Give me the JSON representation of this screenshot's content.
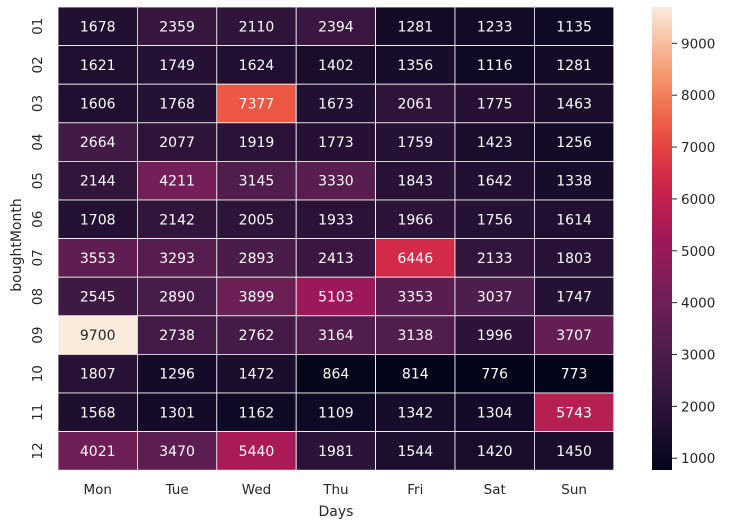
{
  "chart_data": {
    "type": "heatmap",
    "xlabel": "Days",
    "ylabel": "boughtMonth",
    "x_categories": [
      "Mon",
      "Tue",
      "Wed",
      "Thu",
      "Fri",
      "Sat",
      "Sun"
    ],
    "y_categories": [
      "01",
      "02",
      "03",
      "04",
      "05",
      "06",
      "07",
      "08",
      "09",
      "10",
      "11",
      "12"
    ],
    "values": [
      [
        1678,
        2359,
        2110,
        2394,
        1281,
        1233,
        1135
      ],
      [
        1621,
        1749,
        1624,
        1402,
        1356,
        1116,
        1281
      ],
      [
        1606,
        1768,
        7377,
        1673,
        2061,
        1775,
        1463
      ],
      [
        2664,
        2077,
        1919,
        1773,
        1759,
        1423,
        1256
      ],
      [
        2144,
        4211,
        3145,
        3330,
        1843,
        1642,
        1338
      ],
      [
        1708,
        2142,
        2005,
        1933,
        1966,
        1756,
        1614
      ],
      [
        3553,
        3293,
        2893,
        2413,
        6446,
        2133,
        1803
      ],
      [
        2545,
        2890,
        3899,
        5103,
        3353,
        3037,
        1747
      ],
      [
        9700,
        2738,
        2762,
        3164,
        3138,
        1996,
        3707
      ],
      [
        1807,
        1296,
        1472,
        864,
        814,
        776,
        773
      ],
      [
        1568,
        1301,
        1162,
        1109,
        1342,
        1304,
        5743
      ],
      [
        4021,
        3470,
        5440,
        1981,
        1544,
        1420,
        1450
      ]
    ],
    "colorbar": {
      "min": 773,
      "max": 9700,
      "ticks": [
        1000,
        2000,
        3000,
        4000,
        5000,
        6000,
        7000,
        8000,
        9000
      ]
    },
    "colormap": "rocket"
  }
}
